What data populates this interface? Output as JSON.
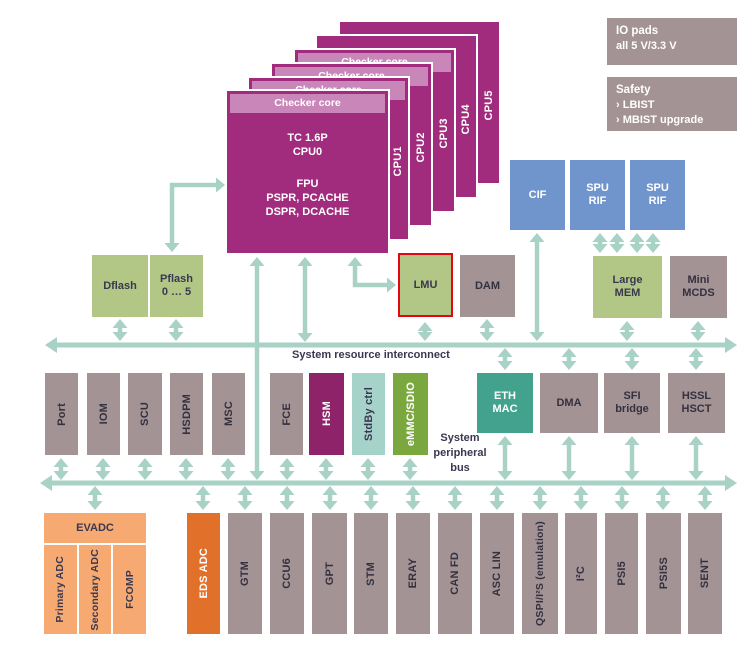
{
  "cpu_stack": {
    "checker_label": "Checker core",
    "cpu0_title": "TC 1.6P\nCPU0",
    "cpu0_features": "FPU\nPSPR, PCACHE\nDSPR, DCACHE",
    "back_cores": [
      "CPU1",
      "CPU2",
      "CPU3",
      "CPU4",
      "CPU5"
    ]
  },
  "io_pads": {
    "title": "IO pads",
    "subtitle": "all 5 V/3.3 V"
  },
  "safety": {
    "title": "Safety",
    "item1": "› LBIST",
    "item2": "› MBIST upgrade"
  },
  "top_blocks": {
    "cif": "CIF",
    "spu_rif_1": "SPU\nRIF",
    "spu_rif_2": "SPU\nRIF"
  },
  "memory": {
    "dflash": "Dflash",
    "pflash": "Pflash\n0 … 5",
    "lmu": "LMU",
    "dam": "DAM",
    "large_mem": "Large\nMEM",
    "mini_mcds": "Mini\nMCDS"
  },
  "buses": {
    "interconnect_label": "System resource interconnect",
    "peripheral_label": "System\nperipheral\nbus"
  },
  "mid_row": [
    {
      "label": "Port"
    },
    {
      "label": "IOM"
    },
    {
      "label": "SCU"
    },
    {
      "label": "HSDPM"
    },
    {
      "label": "MSC"
    },
    {
      "label": "FCE"
    },
    {
      "label": "HSM"
    },
    {
      "label": "StdBy ctrl"
    },
    {
      "label": "eMMC/SDIO"
    }
  ],
  "right_row": [
    {
      "label": "ETH\nMAC"
    },
    {
      "label": "DMA"
    },
    {
      "label": "SFI\nbridge"
    },
    {
      "label": "HSSL\nHSCT"
    }
  ],
  "evadc": {
    "title": "EVADC",
    "channels": [
      "Primary ADC",
      "Secondary ADC",
      "FCOMP"
    ]
  },
  "bottom_row": [
    {
      "label": "EDS ADC"
    },
    {
      "label": "GTM"
    },
    {
      "label": "CCU6"
    },
    {
      "label": "GPT"
    },
    {
      "label": "STM"
    },
    {
      "label": "ERAY"
    },
    {
      "label": "CAN FD"
    },
    {
      "label": "ASC LIN"
    },
    {
      "label": "QSPI/I²S (emulation)"
    },
    {
      "label": "I²C"
    },
    {
      "label": "PSI5"
    },
    {
      "label": "PSI5S"
    },
    {
      "label": "SENT"
    }
  ],
  "colors": {
    "cpu_magenta": "#a12c7e",
    "checker_band": "#c986b8",
    "hsm_magenta": "#8e2369",
    "blue": "#6f95cc",
    "flash_green": "#b2c786",
    "emmc_green": "#7ba73f",
    "mauve": "#a39395",
    "standby_teal": "#a5d2c9",
    "eth_teal": "#42a28d",
    "evadc_orange": "#f6aa72",
    "eds_orange": "#e1702a",
    "arrow_teal": "#a9d2c6",
    "lmu_highlight_red": "#e30613"
  }
}
